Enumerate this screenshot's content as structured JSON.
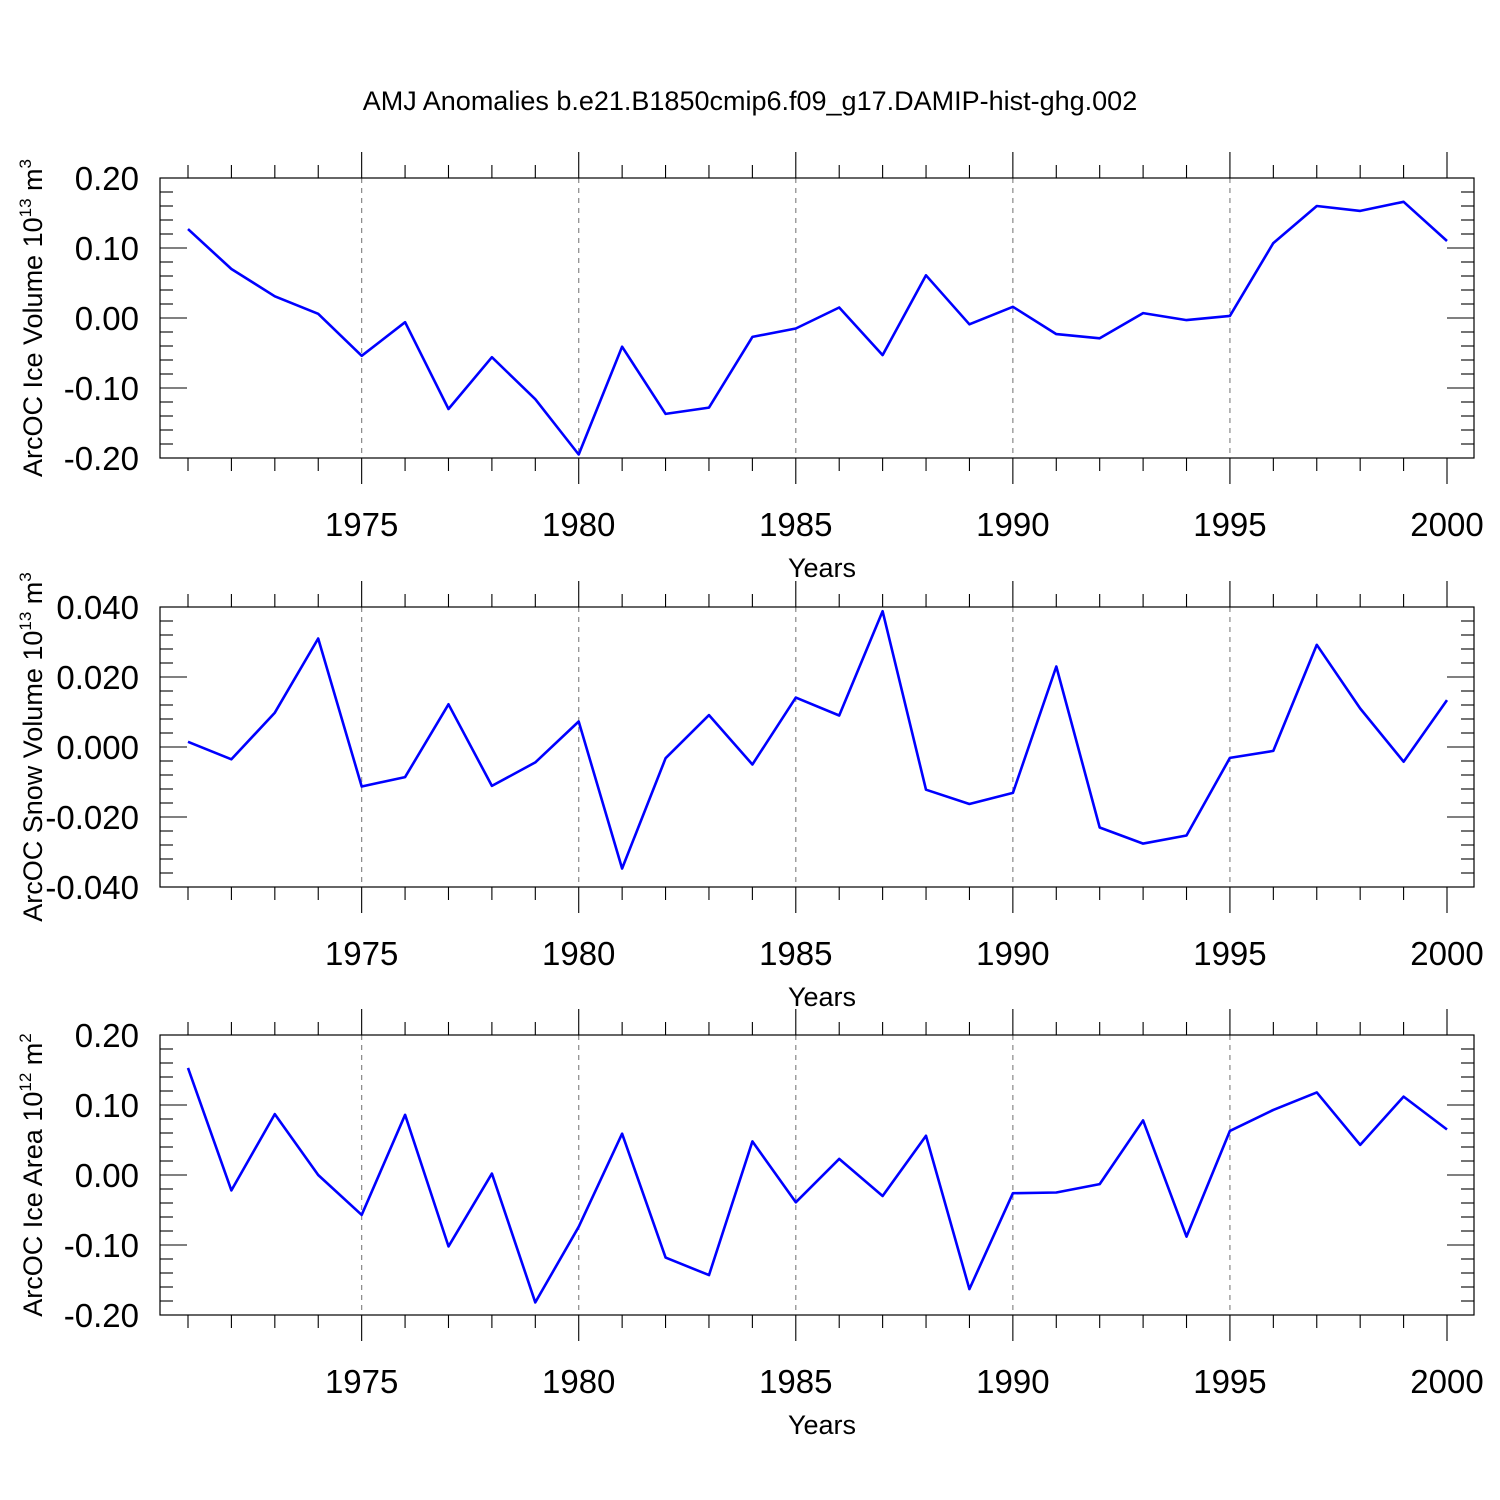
{
  "title": "AMJ Anomalies b.e21.B1850cmip6.f09_g17.DAMIP-hist-ghg.002",
  "line_color": "#0000ff",
  "chart_data": [
    {
      "type": "line",
      "ylabel": "ArcOC Ice Volume 10",
      "ylabel_exp": "13",
      "ylabel_unit": " m",
      "ylabel_unit_exp": "3",
      "xlabel": "Years",
      "xlim": [
        1971,
        2000
      ],
      "ylim": [
        -0.2,
        0.2
      ],
      "xticks": [
        1975,
        1980,
        1985,
        1990,
        1995,
        2000
      ],
      "yticks": [
        -0.2,
        -0.1,
        0.0,
        0.1,
        0.2
      ],
      "ytick_labels": [
        "-0.20",
        "-0.10",
        "0.00",
        "0.10",
        "0.20"
      ],
      "grid": "vertical dashed at major x ticks",
      "x": [
        1971,
        1972,
        1973,
        1974,
        1975,
        1976,
        1977,
        1978,
        1979,
        1980,
        1981,
        1982,
        1983,
        1984,
        1985,
        1986,
        1987,
        1988,
        1989,
        1990,
        1991,
        1992,
        1993,
        1994,
        1995,
        1996,
        1997,
        1998,
        1999,
        2000
      ],
      "values": [
        0.127,
        0.07,
        0.031,
        0.006,
        -0.054,
        -0.006,
        -0.13,
        -0.056,
        -0.116,
        -0.195,
        -0.041,
        -0.137,
        -0.128,
        -0.027,
        -0.015,
        0.015,
        -0.053,
        0.061,
        -0.009,
        0.016,
        -0.023,
        -0.029,
        0.007,
        -0.003,
        0.003,
        0.107,
        0.16,
        0.153,
        0.166,
        0.11
      ]
    },
    {
      "type": "line",
      "ylabel": "ArcOC Snow Volume 10",
      "ylabel_exp": "13",
      "ylabel_unit": " m",
      "ylabel_unit_exp": "3",
      "xlabel": "Years",
      "xlim": [
        1971,
        2000
      ],
      "ylim": [
        -0.04,
        0.04
      ],
      "xticks": [
        1975,
        1980,
        1985,
        1990,
        1995,
        2000
      ],
      "yticks": [
        -0.04,
        -0.02,
        0.0,
        0.02,
        0.04
      ],
      "ytick_labels": [
        "-0.040",
        "-0.020",
        "0.000",
        "0.020",
        "0.040"
      ],
      "grid": "vertical dashed at major x ticks",
      "x": [
        1971,
        1972,
        1973,
        1974,
        1975,
        1976,
        1977,
        1978,
        1979,
        1980,
        1981,
        1982,
        1983,
        1984,
        1985,
        1986,
        1987,
        1988,
        1989,
        1990,
        1991,
        1992,
        1993,
        1994,
        1995,
        1996,
        1997,
        1998,
        1999,
        2000
      ],
      "values": [
        0.0015,
        -0.0035,
        0.0098,
        0.031,
        -0.0113,
        -0.0086,
        0.0122,
        -0.0111,
        -0.0044,
        0.0073,
        -0.0347,
        -0.0032,
        0.0091,
        -0.005,
        0.0141,
        0.009,
        0.0388,
        -0.0122,
        -0.0163,
        -0.0131,
        0.023,
        -0.023,
        -0.0276,
        -0.0253,
        -0.0031,
        -0.0011,
        0.0292,
        0.011,
        -0.0042,
        0.0134
      ]
    },
    {
      "type": "line",
      "ylabel": "ArcOC Ice Area 10",
      "ylabel_exp": "12",
      "ylabel_unit": " m",
      "ylabel_unit_exp": "2",
      "xlabel": "Years",
      "xlim": [
        1971,
        2000
      ],
      "ylim": [
        -0.2,
        0.2
      ],
      "xticks": [
        1975,
        1980,
        1985,
        1990,
        1995,
        2000
      ],
      "yticks": [
        -0.2,
        -0.1,
        0.0,
        0.1,
        0.2
      ],
      "ytick_labels": [
        "-0.20",
        "-0.10",
        "0.00",
        "0.10",
        "0.20"
      ],
      "grid": "vertical dashed at major x ticks",
      "x": [
        1971,
        1972,
        1973,
        1974,
        1975,
        1976,
        1977,
        1978,
        1979,
        1980,
        1981,
        1982,
        1983,
        1984,
        1985,
        1986,
        1987,
        1988,
        1989,
        1990,
        1991,
        1992,
        1993,
        1994,
        1995,
        1996,
        1997,
        1998,
        1999,
        2000
      ],
      "values": [
        0.153,
        -0.022,
        0.087,
        0.0,
        -0.057,
        0.086,
        -0.102,
        0.002,
        -0.182,
        -0.074,
        0.059,
        -0.118,
        -0.143,
        0.048,
        -0.039,
        0.023,
        -0.03,
        0.056,
        -0.163,
        -0.026,
        -0.025,
        -0.013,
        0.078,
        -0.088,
        0.063,
        0.093,
        0.118,
        0.043,
        0.112,
        0.065
      ]
    }
  ]
}
